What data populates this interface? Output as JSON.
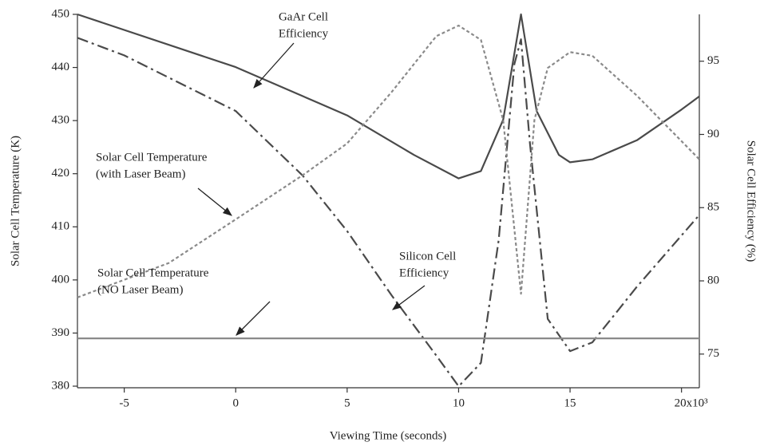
{
  "chart_data": {
    "type": "line",
    "xlabel": "Viewing Time (seconds)",
    "ylabel": "Solar Cell Temperature (K)",
    "y2label": "Solar Cell Efficiency (%)",
    "xlim": [
      -7.1,
      20.8
    ],
    "xticks": [
      -5,
      0,
      5,
      10,
      15,
      {
        "value": 20,
        "label": "20x10³"
      }
    ],
    "ylim": [
      379.7,
      450
    ],
    "yticks": [
      380,
      390,
      400,
      410,
      420,
      430,
      440,
      450
    ],
    "y2lim": [
      72.7,
      98.2
    ],
    "y2ticks": [
      75,
      80,
      85,
      90,
      95
    ],
    "series": [
      {
        "color": "#4a4a4a",
        "dash": "solid",
        "axis": "y2",
        "x": [
          -7.1,
          0,
          5,
          8,
          10,
          11,
          12,
          12.8,
          13.5,
          14.5,
          15,
          16,
          18,
          20,
          20.8
        ],
        "values": [
          98.2,
          94.6,
          91.3,
          88.6,
          87.0,
          87.5,
          91.0,
          98.2,
          91.6,
          88.6,
          88.1,
          88.3,
          89.6,
          91.7,
          92.6
        ]
      },
      {
        "color": "#4a4a4a",
        "dash": "dashdot",
        "axis": "y2",
        "x": [
          -7.1,
          -5,
          0,
          3,
          5,
          7,
          9,
          10,
          11,
          11.8,
          12.5,
          12.8,
          13.2,
          14,
          15,
          16,
          18,
          20.8
        ],
        "values": [
          96.6,
          95.4,
          91.6,
          87.2,
          83.4,
          79.0,
          74.9,
          72.8,
          74.4,
          82.8,
          94.8,
          96.5,
          89.4,
          77.4,
          75.2,
          75.8,
          79.6,
          84.5
        ]
      },
      {
        "color": "#8a8a8a",
        "dash": "dotted",
        "axis": "y",
        "x": [
          -7.1,
          -3,
          0,
          3,
          5,
          7,
          9,
          10,
          11,
          12,
          12.8,
          13.4,
          14,
          15,
          16,
          18,
          20.8
        ],
        "values": [
          396.7,
          403.2,
          411.4,
          419.7,
          425.7,
          435.4,
          445.9,
          447.9,
          445.2,
          430.1,
          397.4,
          430.1,
          439.9,
          442.9,
          442.2,
          434.7,
          422.7
        ]
      },
      {
        "color": "#8a8a8a",
        "dash": "solid",
        "axis": "y",
        "x": [
          -7.1,
          20.8
        ],
        "values": [
          389,
          389
        ]
      }
    ],
    "annotations": [
      {
        "lines": [
          "GaAr Cell",
          "Efficiency"
        ]
      },
      {
        "lines": [
          "Solar Cell Temperature",
          "(with Laser Beam)"
        ]
      },
      {
        "lines": [
          "Solar Cell Temperature",
          "(NO Laser Beam)"
        ]
      },
      {
        "lines": [
          "Silicon Cell",
          "Efficiency"
        ]
      }
    ]
  }
}
